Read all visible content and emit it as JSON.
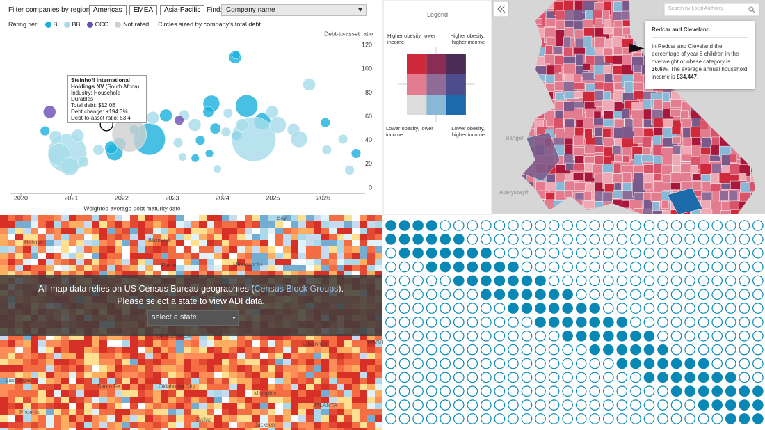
{
  "chart_data": {
    "type": "bubble",
    "filter_label": "Filter companies by region:",
    "regions": [
      "Americas",
      "EMEA",
      "Asia-Pacific"
    ],
    "find_label": "Find:",
    "find_placeholder": "Company name",
    "legend_title": "Rating tier:",
    "size_note": "Circles sized by company's total debt",
    "y_label": "Debt-to-asset ratio",
    "x_label": "Weighted average debt maturity date",
    "xlim": [
      2019.78,
      2026.83
    ],
    "xticks": [
      2020,
      2021,
      2022,
      2023,
      2024,
      2025,
      2026
    ],
    "ylim": [
      -4.7,
      126
    ],
    "yticks": [
      0,
      20,
      40,
      60,
      80,
      100,
      120
    ],
    "series": [
      {
        "name": "B",
        "color": "#19b0dc",
        "x": [
          2024.25,
          2024.27,
          2024.48,
          2023.78,
          2023.72,
          2024.79,
          2022.88,
          2022.55,
          2021.86,
          2021.96,
          2023.86,
          2023.56,
          2023.46,
          2023.74,
          2024.28,
          2026.04,
          2026.65,
          2020.48,
          2022.25,
          2021.79
        ],
        "values": [
          110,
          112,
          69,
          71,
          64,
          56,
          61,
          41,
          30,
          37,
          50,
          40,
          25,
          29,
          44,
          55,
          29,
          48,
          49,
          34
        ],
        "sizes": [
          12,
          5,
          38,
          21,
          9,
          21,
          12,
          78,
          21,
          12,
          9,
          7,
          5,
          5,
          7,
          7,
          7,
          7,
          7,
          12
        ]
      },
      {
        "name": "BB",
        "color": "#a6dcea",
        "x": [
          2020.92,
          2024.62,
          2020.76,
          2020.97,
          2021.13,
          2021.24,
          2020.69,
          2021.54,
          2022.62,
          2023.12,
          2023.21,
          2023.24,
          2023.45,
          2024.07,
          2024.99,
          2025.1,
          2025.41,
          2025.52,
          2025.72,
          2026.39,
          2026.52,
          2023.9,
          2024.11,
          2024.39,
          2026.07
        ],
        "values": [
          29,
          41,
          28,
          18,
          44,
          22,
          43,
          32,
          59,
          38,
          26,
          61,
          53,
          47,
          64,
          53,
          49,
          41,
          87,
          41,
          15,
          16,
          63,
          53,
          32
        ],
        "sizes": [
          116,
          151,
          38,
          25,
          12,
          9,
          12,
          9,
          12,
          7,
          5,
          9,
          12,
          7,
          12,
          21,
          12,
          21,
          12,
          7,
          7,
          5,
          7,
          12,
          7
        ]
      },
      {
        "name": "CCC",
        "color": "#6a4db0",
        "x": [
          2020.57,
          2023.14
        ],
        "values": [
          64,
          57
        ],
        "sizes": [
          12,
          7
        ]
      },
      {
        "name": "Not rated",
        "color": "#cfcfcf",
        "x": [
          2022.15,
          2021.7
        ],
        "values": [
          45,
          53.4
        ],
        "sizes": [
          92,
          12.0
        ]
      }
    ],
    "highlight": {
      "series": 3,
      "index": 1
    },
    "tooltip": {
      "name": "Steinhoff International Holdings NV",
      "country": "(South Africa)",
      "lines": [
        "Industry: Household Durables",
        "Total debt: $12.0B",
        "Debt change: +194.3%",
        "Debt-to-asset ratio: 53.4"
      ]
    }
  },
  "obesity_map": {
    "legend_title": "Legend",
    "top_left": "Higher obesity, lower income",
    "top_right": "Higher obesity, higher income",
    "bottom_left": "Lower obesity, lower income",
    "bottom_right": "Lower obesity, higher income",
    "matrix_colors": [
      [
        "#cf2a3c",
        "#8d2c52",
        "#4a2c55"
      ],
      [
        "#e27c8e",
        "#8f6b98",
        "#4d4c8c"
      ],
      [
        "#dcdcdc",
        "#89b7d6",
        "#1c6aaa"
      ]
    ],
    "search_placeholder": "Search by Local Authority",
    "places": [
      "Bangor",
      "Aberystwyth"
    ],
    "popup": {
      "title": "Redcar and Cleveland",
      "text_before": "In Redcar and Cleveland the percentage of year 6 children in the overweight or obese category is",
      "obesity": "36.6%",
      "text_middle": ". The average annual household income is",
      "income": "£34,447",
      "text_end": "."
    }
  },
  "adi_map": {
    "message_before": "All map data relies on US Census Bureau geographies (",
    "link": "Census Block Groups",
    "message_after": ").",
    "message_line2": "Please select a state to view ADI data.",
    "select_placeholder": "select a state",
    "places": [
      "Helena",
      "Bismarck",
      "Pierre",
      "Minneapolis",
      "Bay",
      "Las Vegas",
      "Santa Fe",
      "Oklahoma City",
      "Memphis",
      "ATLANTA",
      "Dallas",
      "Jackson",
      "Phoenix",
      "Cincinnati",
      "WASH",
      "OF AMERICA"
    ]
  },
  "waffle": {
    "color": "#0a88b5",
    "columns": 28,
    "filled": [
      [
        0,
        3
      ],
      [
        0,
        5
      ],
      [
        1,
        7
      ],
      [
        3,
        9
      ],
      [
        5,
        11
      ],
      [
        7,
        13
      ],
      [
        9,
        15
      ],
      [
        11,
        17
      ],
      [
        13,
        19
      ],
      [
        15,
        20
      ],
      [
        17,
        23
      ],
      [
        19,
        25
      ],
      [
        21,
        27
      ],
      [
        23,
        27
      ],
      [
        25,
        27
      ]
    ]
  }
}
